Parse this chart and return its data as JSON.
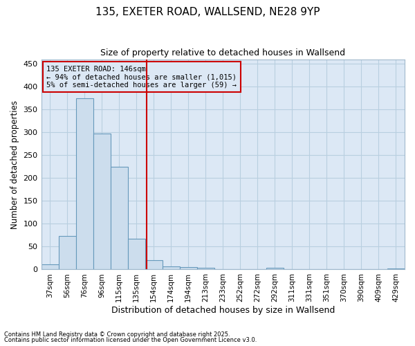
{
  "title_line1": "135, EXETER ROAD, WALLSEND, NE28 9YP",
  "title_line2": "Size of property relative to detached houses in Wallsend",
  "xlabel": "Distribution of detached houses by size in Wallsend",
  "ylabel": "Number of detached properties",
  "categories": [
    "37sqm",
    "56sqm",
    "76sqm",
    "96sqm",
    "115sqm",
    "135sqm",
    "154sqm",
    "174sqm",
    "194sqm",
    "213sqm",
    "233sqm",
    "252sqm",
    "272sqm",
    "292sqm",
    "311sqm",
    "331sqm",
    "351sqm",
    "370sqm",
    "390sqm",
    "409sqm",
    "429sqm"
  ],
  "values": [
    12,
    73,
    375,
    298,
    225,
    67,
    20,
    7,
    5,
    3,
    0,
    0,
    0,
    3,
    0,
    0,
    0,
    0,
    0,
    0,
    2
  ],
  "bar_color": "#ccdded",
  "bar_edge_color": "#6699bb",
  "grid_color": "#b8cfe0",
  "plot_bg_color": "#dce8f5",
  "fig_bg_color": "#ffffff",
  "vline_color": "#cc0000",
  "vline_x": 5.58,
  "annotation_text": "135 EXETER ROAD: 146sqm\n← 94% of detached houses are smaller (1,015)\n5% of semi-detached houses are larger (59) →",
  "annotation_box_color": "#cc0000",
  "footer_line1": "Contains HM Land Registry data © Crown copyright and database right 2025.",
  "footer_line2": "Contains public sector information licensed under the Open Government Licence v3.0.",
  "ylim": [
    0,
    460
  ],
  "yticks": [
    0,
    50,
    100,
    150,
    200,
    250,
    300,
    350,
    400,
    450
  ]
}
